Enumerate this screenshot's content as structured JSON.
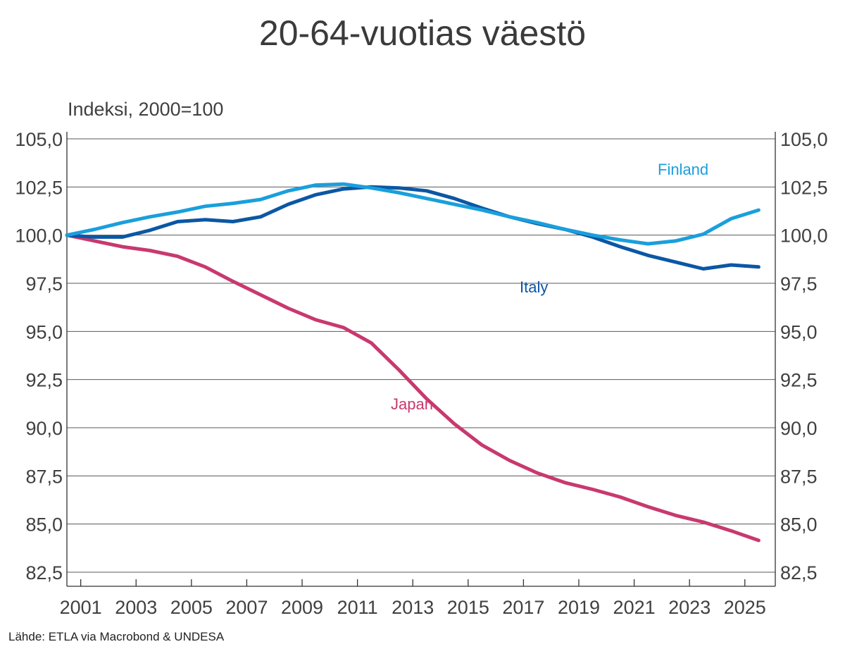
{
  "chart_data": {
    "type": "line",
    "title": "20-64-vuotias väestö",
    "ylabel": "Indeksi, 2000=100",
    "xlabel": "",
    "source": "Lähde: ETLA via Macrobond & UNDESA",
    "ylim": [
      82.5,
      105.0
    ],
    "y_ticks": [
      "82,5",
      "85,0",
      "87,5",
      "90,0",
      "92,5",
      "95,0",
      "97,5",
      "100,0",
      "102,5",
      "105,0"
    ],
    "y_tick_values": [
      82.5,
      85.0,
      87.5,
      90.0,
      92.5,
      95.0,
      97.5,
      100.0,
      102.5,
      105.0
    ],
    "x_ticks": [
      "2001",
      "2003",
      "2005",
      "2007",
      "2009",
      "2011",
      "2013",
      "2015",
      "2017",
      "2019",
      "2021",
      "2023",
      "2025"
    ],
    "x_tick_values": [
      2001,
      2003,
      2005,
      2007,
      2009,
      2011,
      2013,
      2015,
      2017,
      2019,
      2021,
      2023,
      2025
    ],
    "xlim": [
      2000.5,
      2026.1
    ],
    "grid": true,
    "x": [
      2000.5,
      2001.5,
      2002.5,
      2003.5,
      2004.5,
      2005.5,
      2006.5,
      2007.5,
      2008.5,
      2009.5,
      2010.5,
      2011.5,
      2012.5,
      2013.5,
      2014.5,
      2015.5,
      2016.5,
      2017.5,
      2018.5,
      2019.5,
      2020.5,
      2021.5,
      2022.5,
      2023.5,
      2024.5,
      2025.5
    ],
    "series": [
      {
        "name": "Finland",
        "color": "#1a9fdc",
        "values": [
          100.0,
          100.3,
          100.65,
          100.95,
          101.2,
          101.5,
          101.65,
          101.85,
          102.3,
          102.6,
          102.65,
          102.45,
          102.2,
          101.9,
          101.6,
          101.3,
          100.95,
          100.65,
          100.3,
          100.0,
          99.75,
          99.55,
          99.7,
          100.05,
          100.85,
          101.3
        ]
      },
      {
        "name": "Italy",
        "color": "#0b57a4",
        "values": [
          100.0,
          99.9,
          99.9,
          100.25,
          100.7,
          100.8,
          100.7,
          100.95,
          101.6,
          102.1,
          102.4,
          102.5,
          102.45,
          102.3,
          101.9,
          101.4,
          100.95,
          100.6,
          100.3,
          99.9,
          99.4,
          98.95,
          98.6,
          98.25,
          98.45,
          98.35
        ]
      },
      {
        "name": "Japan",
        "color": "#c8396f",
        "values": [
          100.0,
          99.7,
          99.4,
          99.2,
          98.9,
          98.35,
          97.6,
          96.9,
          96.2,
          95.6,
          95.2,
          94.4,
          93.0,
          91.5,
          90.2,
          89.1,
          88.3,
          87.65,
          87.15,
          86.8,
          86.4,
          85.9,
          85.45,
          85.1,
          84.65,
          84.15
        ]
      }
    ]
  }
}
